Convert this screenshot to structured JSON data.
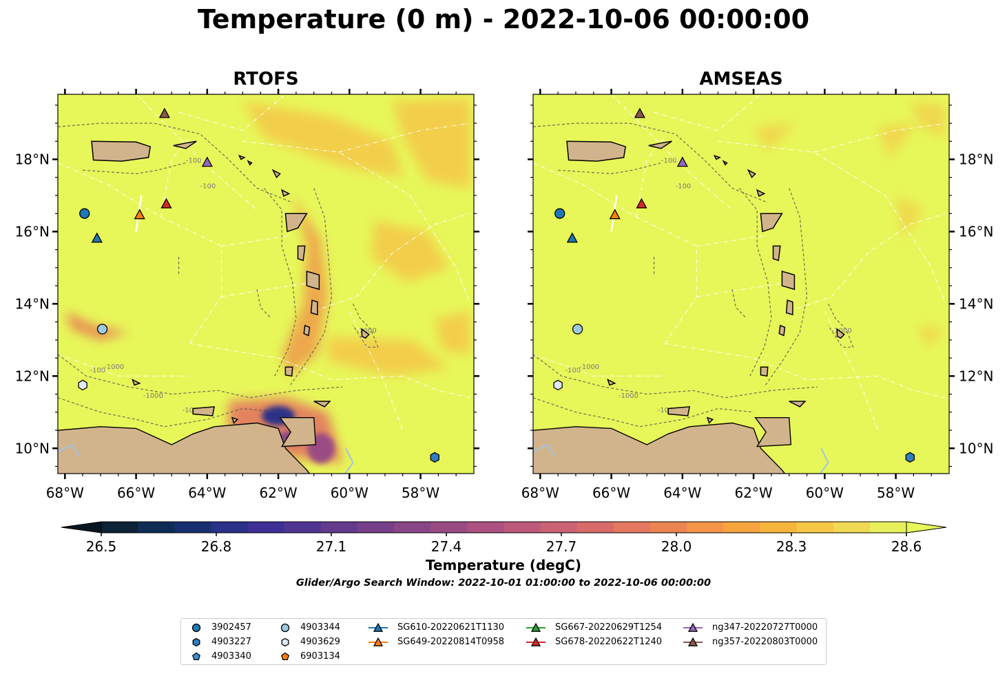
{
  "title": "Temperature (0 m) - 2022-10-06 00:00:00",
  "panels": [
    {
      "name": "RTOFS"
    },
    {
      "name": "AMSEAS"
    }
  ],
  "map_extent": {
    "lon": [
      -68.2,
      -56.5
    ],
    "lat": [
      9.3,
      19.8
    ]
  },
  "lon_ticks": [
    {
      "value": -68,
      "label": "68°W"
    },
    {
      "value": -66,
      "label": "66°W"
    },
    {
      "value": -64,
      "label": "64°W"
    },
    {
      "value": -62,
      "label": "62°W"
    },
    {
      "value": -60,
      "label": "60°W"
    },
    {
      "value": -58,
      "label": "58°W"
    }
  ],
  "lat_ticks": [
    {
      "value": 10,
      "label": "10°N"
    },
    {
      "value": 12,
      "label": "12°N"
    },
    {
      "value": 14,
      "label": "14°N"
    },
    {
      "value": 16,
      "label": "16°N"
    },
    {
      "value": 18,
      "label": "18°N"
    }
  ],
  "colorbar": {
    "min": 26.5,
    "max": 28.6,
    "ticks": [
      "26.5",
      "26.8",
      "27.1",
      "27.4",
      "27.7",
      "28.0",
      "28.3",
      "28.6"
    ],
    "label": "Temperature (degC)",
    "colors": [
      "#0c2236",
      "#0f2c55",
      "#172f6e",
      "#2a3188",
      "#3d2f96",
      "#4f3491",
      "#633a8c",
      "#753f89",
      "#884686",
      "#9a4b84",
      "#ac5181",
      "#bd597b",
      "#cb6274",
      "#d86b6a",
      "#e3775f",
      "#ec8451",
      "#f39447",
      "#f6a43e",
      "#f8b53c",
      "#f6c645",
      "#f0d954",
      "#e8f15b"
    ],
    "over_color": "#e8f759",
    "under_color": "#071520"
  },
  "search_window": "Glider/Argo Search Window: 2022-10-01 01:00:00 to 2022-10-06 00:00:00",
  "contour_labels": [
    "-100",
    "-1000"
  ],
  "legend_items": [
    {
      "label": "3902457",
      "marker": "circle",
      "color": "#1f77b4"
    },
    {
      "label": "4903227",
      "marker": "hexagon",
      "color": "#2f7fbf"
    },
    {
      "label": "4903340",
      "marker": "pentagon",
      "color": "#3d8fd0"
    },
    {
      "label": "4903344",
      "marker": "circle",
      "color": "#9ecae1"
    },
    {
      "label": "4903629",
      "marker": "hexagon",
      "color": "#deebf7"
    },
    {
      "label": "6903134",
      "marker": "pentagon",
      "color": "#ff7f0e"
    },
    {
      "label": "SG610-20220621T1130",
      "marker": "triangle",
      "color": "#1f77b4"
    },
    {
      "label": "SG649-20220814T0958",
      "marker": "triangle",
      "color": "#ff7f0e"
    },
    {
      "label": "SG667-20220629T1254",
      "marker": "triangle",
      "color": "#2ca02c"
    },
    {
      "label": "SG678-20220622T1240",
      "marker": "triangle",
      "color": "#d62728"
    },
    {
      "label": "ng347-20220727T0000",
      "marker": "triangle",
      "color": "#9467bd"
    },
    {
      "label": "ng357-20220803T0000",
      "marker": "triangle",
      "color": "#8c564b"
    }
  ],
  "observations": [
    {
      "id": "3902457",
      "lon": -67.45,
      "lat": 16.5
    },
    {
      "id": "SG610-20220621T1130",
      "lon": -67.1,
      "lat": 15.8
    },
    {
      "id": "SG649-20220814T0958",
      "lon": -65.9,
      "lat": 16.45
    },
    {
      "id": "SG678-20220622T1240",
      "lon": -65.15,
      "lat": 16.75
    },
    {
      "id": "ng347-20220727T0000",
      "lon": -64.0,
      "lat": 17.9
    },
    {
      "id": "ng357-20220803T0000",
      "lon": -65.2,
      "lat": 19.25
    },
    {
      "id": "4903344",
      "lon": -66.95,
      "lat": 13.3
    },
    {
      "id": "4903629",
      "lon": -67.5,
      "lat": 11.75
    },
    {
      "id": "4903227",
      "lon": -57.6,
      "lat": 9.75
    }
  ],
  "colors": {
    "ocean_base": "#e7f759",
    "land": "#d2b48c",
    "lakes": "#9ec4e8",
    "eez_lines": "#ffffff",
    "bathy_contours": "#555555"
  }
}
